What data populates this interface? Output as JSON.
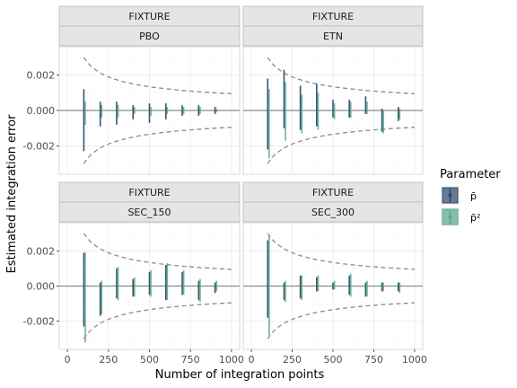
{
  "chart_data": {
    "type": "errorbar",
    "facet_row_label": "FIXTURE",
    "xlabel": "Number of integration points",
    "ylabel": "Estimated integration error",
    "xlim": [
      -50,
      1050
    ],
    "ylim": [
      -0.0036,
      0.0036
    ],
    "x_ticks": [
      0,
      250,
      500,
      750,
      1000
    ],
    "x_tick_labels": [
      "0",
      "250",
      "500",
      "750",
      "1000"
    ],
    "y_ticks": [
      -0.002,
      0,
      0.002
    ],
    "y_tick_labels": [
      "-0.002",
      "0.000",
      "0.002"
    ],
    "grid": true,
    "legend": {
      "title": "Parameter",
      "position": "right",
      "items": [
        {
          "label": "p̄",
          "color": "#2c4a6e"
        },
        {
          "label": "p̄²",
          "color": "#5aab8a"
        }
      ]
    },
    "bound_formula": "±0.03/sqrt(n)",
    "x": [
      100,
      200,
      300,
      400,
      500,
      600,
      700,
      800,
      900
    ],
    "panels": [
      {
        "name": "PBO",
        "series": [
          {
            "name": "p̄",
            "lower": [
              -0.0023,
              -0.0009,
              -0.0008,
              -0.0005,
              -0.0007,
              -0.0005,
              -0.0003,
              -0.0003,
              -0.0002
            ],
            "upper": [
              0.0012,
              0.0005,
              0.0005,
              0.0003,
              0.0004,
              0.0004,
              0.0003,
              0.0003,
              0.0002
            ]
          },
          {
            "name": "p̄²",
            "lower": [
              -0.0008,
              -0.0004,
              -0.0004,
              -0.0002,
              -0.0003,
              -0.0002,
              -0.0002,
              -0.0002,
              -0.0001
            ],
            "upper": [
              0.0005,
              0.0003,
              0.0003,
              0.0002,
              0.0002,
              0.0002,
              0.0002,
              0.0002,
              0.0001
            ]
          }
        ]
      },
      {
        "name": "ETN",
        "series": [
          {
            "name": "p̄",
            "lower": [
              -0.0022,
              -0.001,
              -0.0011,
              -0.0009,
              -0.0004,
              -0.0004,
              -0.0002,
              -0.0012,
              -0.0006
            ],
            "upper": [
              0.0018,
              0.0023,
              0.0014,
              0.0015,
              0.0006,
              0.0006,
              0.0008,
              0.0001,
              0.0002
            ]
          },
          {
            "name": "p̄²",
            "lower": [
              -0.0027,
              -0.0017,
              -0.0013,
              -0.0011,
              -0.0005,
              -0.0004,
              -0.0002,
              -0.0013,
              -0.0005
            ],
            "upper": [
              0.0012,
              0.0016,
              0.0009,
              0.001,
              0.0004,
              0.0005,
              0.0005,
              0.0,
              0.0001
            ]
          }
        ]
      },
      {
        "name": "SEC_150",
        "series": [
          {
            "name": "p̄",
            "lower": [
              -0.0023,
              -0.0017,
              -0.0007,
              -0.0006,
              -0.0005,
              -0.0008,
              -0.0005,
              -0.0008,
              -0.0004
            ],
            "upper": [
              0.0019,
              0.0002,
              0.001,
              0.0004,
              0.0008,
              0.0012,
              0.0008,
              0.0003,
              0.0002
            ]
          },
          {
            "name": "p̄²",
            "lower": [
              -0.0032,
              -0.0016,
              -0.0008,
              -0.0006,
              -0.0006,
              -0.0008,
              -0.0005,
              -0.0009,
              -0.0003
            ],
            "upper": [
              0.0019,
              0.0003,
              0.0011,
              0.0005,
              0.0009,
              0.0013,
              0.0009,
              0.0004,
              0.0003
            ]
          }
        ]
      },
      {
        "name": "SEC_300",
        "series": [
          {
            "name": "p̄",
            "lower": [
              -0.0018,
              -0.0008,
              -0.0007,
              -0.0003,
              -0.0002,
              -0.0005,
              -0.0006,
              -0.0003,
              -0.0003
            ],
            "upper": [
              0.0026,
              0.0002,
              0.0006,
              0.0005,
              0.0002,
              0.0006,
              0.0002,
              0.0002,
              0.0002
            ]
          },
          {
            "name": "p̄²",
            "lower": [
              -0.0028,
              -0.0009,
              -0.0008,
              -0.0003,
              -0.0002,
              -0.0006,
              -0.0006,
              -0.0003,
              -0.0004
            ],
            "upper": [
              0.0029,
              0.0003,
              0.0006,
              0.0006,
              0.0003,
              0.0007,
              0.0003,
              0.0002,
              0.0002
            ]
          }
        ]
      }
    ]
  }
}
